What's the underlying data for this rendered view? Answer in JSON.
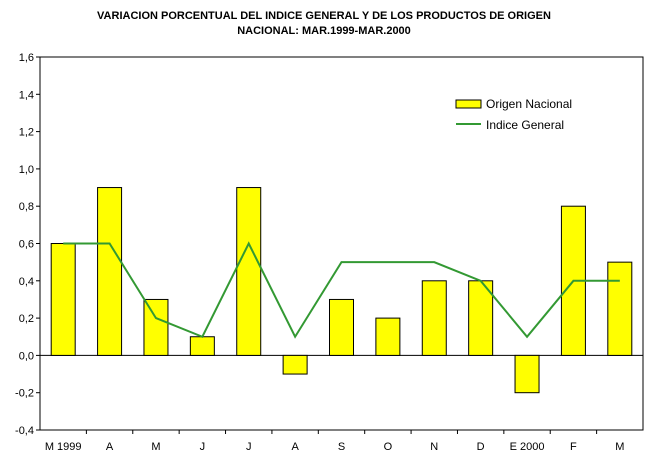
{
  "chart_data": {
    "type": "bar",
    "title": "VARIACION PORCENTUAL DEL INDICE GENERAL Y DE LOS PRODUCTOS DE ORIGEN",
    "subtitle": "NACIONAL: MAR.1999-MAR.2000",
    "categories": [
      "M 1999",
      "A",
      "M",
      "J",
      "J",
      "A",
      "S",
      "O",
      "N",
      "D",
      "E 2000",
      "F",
      "M"
    ],
    "series": [
      {
        "name": "Origen Nacional",
        "type": "bar",
        "color": "#ffff00",
        "values": [
          0.6,
          0.9,
          0.3,
          0.1,
          0.9,
          -0.1,
          0.3,
          0.2,
          0.4,
          0.4,
          -0.2,
          0.8,
          0.5
        ]
      },
      {
        "name": "Indice General",
        "type": "line",
        "color": "#339933",
        "values": [
          0.6,
          0.6,
          0.2,
          0.1,
          0.6,
          0.1,
          0.5,
          0.5,
          0.5,
          0.4,
          0.1,
          0.4,
          0.4
        ]
      }
    ],
    "ylim": [
      -0.4,
      1.6
    ],
    "yticks": [
      "-0,4",
      "-0,2",
      "0,0",
      "0,2",
      "0,4",
      "0,6",
      "0,8",
      "1,0",
      "1,2",
      "1,4",
      "1,6"
    ],
    "xlabel": "",
    "ylabel": "",
    "grid": false,
    "legend": "top-right"
  }
}
